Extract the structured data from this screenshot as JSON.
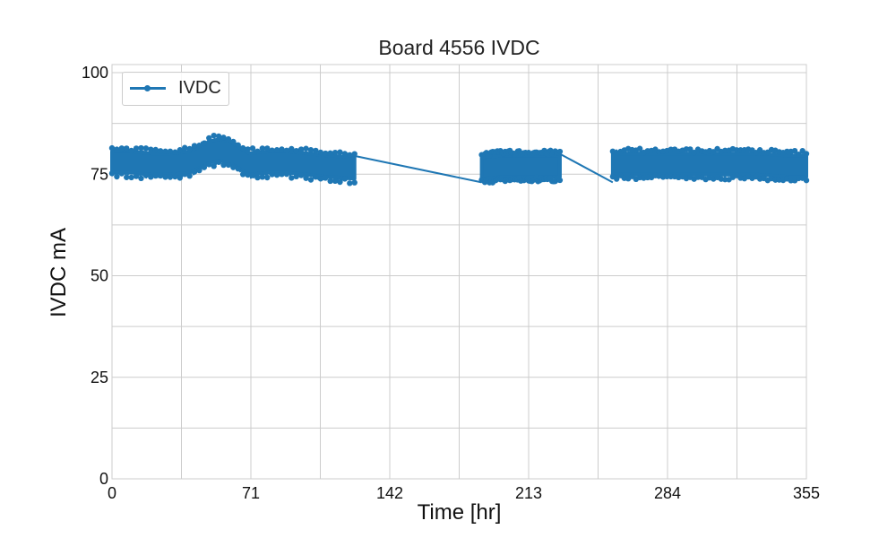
{
  "chart_data": {
    "type": "line",
    "title": "Board 4556 IVDC",
    "xlabel": "Time [hr]",
    "ylabel": "IVDC mA",
    "xlim": [
      0,
      355
    ],
    "ylim": [
      0,
      102
    ],
    "xticks": [
      0,
      71,
      142,
      213,
      284,
      355
    ],
    "yticks": [
      0,
      25,
      50,
      75,
      100
    ],
    "grid": true,
    "legend": "top-left",
    "series": [
      {
        "name": "IVDC",
        "color": "#1f77b4",
        "marker": "circle",
        "band_half_width": 3.5,
        "segments": [
          {
            "x": [
              0,
              10,
              20,
              30,
              40,
              50,
              55,
              60,
              70,
              80,
              90,
              100,
              110,
              124
            ],
            "y": [
              78,
              78,
              77.5,
              77.5,
              78,
              80.5,
              81,
              80.5,
              77.5,
              78,
              78,
              77.5,
              77,
              76.5
            ]
          },
          {
            "x": [
              189,
              200,
              210,
              220,
              229
            ],
            "y": [
              76.5,
              77,
              77,
              77,
              77
            ]
          },
          {
            "x": [
              256,
              270,
              284,
              300,
              315,
              330,
              345,
              355
            ],
            "y": [
              77.5,
              77.5,
              77.5,
              77.5,
              77.5,
              77.5,
              77,
              77
            ]
          }
        ],
        "connectors": [
          {
            "x": [
              124,
              189
            ],
            "y": [
              79.5,
              73
            ]
          },
          {
            "x": [
              229,
              256
            ],
            "y": [
              80,
              73
            ]
          }
        ]
      }
    ]
  }
}
